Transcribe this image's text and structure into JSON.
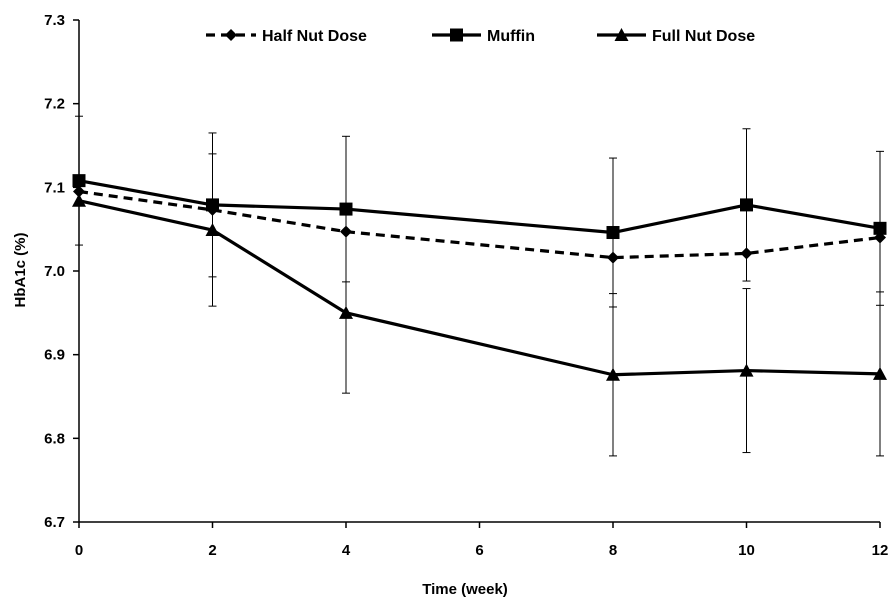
{
  "chart_data": {
    "type": "line",
    "title": "",
    "xlabel": "Time (week)",
    "ylabel": "HbA1c (%)",
    "xlim": [
      0,
      12
    ],
    "ylim": [
      6.7,
      7.3
    ],
    "x_ticks": [
      0,
      2,
      4,
      6,
      8,
      10,
      12
    ],
    "y_ticks": [
      "6.7",
      "6.8",
      "6.9",
      "7.0",
      "7.1",
      "7.2",
      "7.3"
    ],
    "grid": false,
    "legend_position": "top",
    "series": [
      {
        "name": "Half Nut Dose",
        "marker": "diamond",
        "line_style": "dashed",
        "color": "#000000",
        "x": [
          0,
          2,
          4,
          8,
          10,
          12
        ],
        "values": [
          7.095,
          7.073,
          7.047,
          7.016,
          7.021,
          7.04
        ],
        "error": [
          0,
          0,
          0,
          0,
          0,
          0
        ]
      },
      {
        "name": "Muffin",
        "marker": "square",
        "line_style": "solid",
        "color": "#000000",
        "x": [
          0,
          2,
          4,
          8,
          10,
          12
        ],
        "values": [
          7.108,
          7.079,
          7.074,
          7.046,
          7.079,
          7.051
        ],
        "error": [
          0.077,
          0.086,
          0.087,
          0.089,
          0.091,
          0.092
        ]
      },
      {
        "name": "Full Nut Dose",
        "marker": "triangle",
        "line_style": "solid",
        "color": "#000000",
        "x": [
          0,
          2,
          4,
          8,
          10,
          12
        ],
        "values": [
          7.084,
          7.049,
          6.95,
          6.876,
          6.881,
          6.877
        ],
        "error": [
          0,
          0.091,
          0.096,
          0.097,
          0.098,
          0.098
        ]
      }
    ]
  }
}
